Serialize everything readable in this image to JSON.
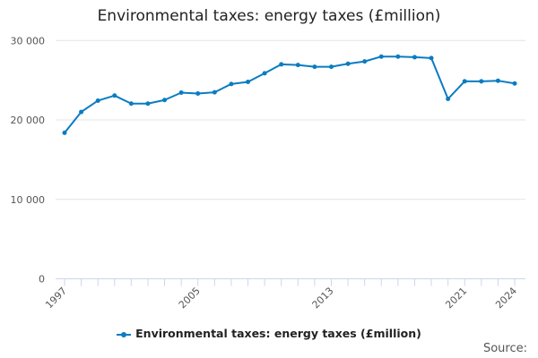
{
  "chart_data": {
    "type": "line",
    "title": "Environmental taxes: energy taxes (£million)",
    "xlabel": "",
    "ylabel": "",
    "x": [
      1997,
      1998,
      1999,
      2000,
      2001,
      2002,
      2003,
      2004,
      2005,
      2006,
      2007,
      2008,
      2009,
      2010,
      2011,
      2012,
      2013,
      2014,
      2015,
      2016,
      2017,
      2018,
      2019,
      2020,
      2021,
      2022,
      2023,
      2024
    ],
    "series": [
      {
        "name": "Environmental taxes: energy taxes (£million)",
        "values": [
          18380,
          21010,
          22430,
          23070,
          22060,
          22060,
          22510,
          23440,
          23330,
          23480,
          24530,
          24790,
          25880,
          27000,
          26920,
          26700,
          26700,
          27080,
          27370,
          27980,
          27980,
          27900,
          27790,
          22650,
          24870,
          24870,
          24940,
          24600
        ]
      }
    ],
    "ylim": [
      0,
      30000
    ],
    "yticks": [
      "0",
      "10 000",
      "20 000",
      "30 000"
    ],
    "yticks_values": [
      0,
      10000,
      20000,
      30000
    ],
    "xtick_labels": [
      "1997",
      "2005",
      "2013",
      "2021",
      "2024"
    ],
    "grid": true,
    "legend": "bottom",
    "color": "#0a7cc1"
  },
  "source_label": "Source:"
}
